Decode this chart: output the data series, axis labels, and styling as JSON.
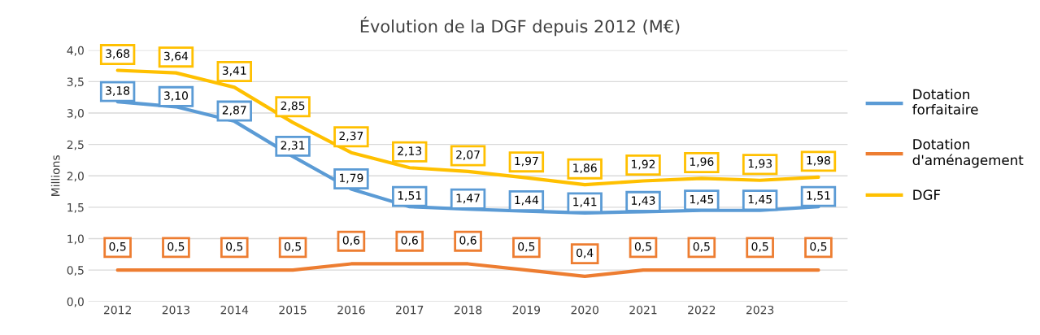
{
  "chart_data": {
    "type": "line",
    "title": "Évolution de la DGF depuis 2012 (M€)",
    "ylabel": "Millions",
    "categories": [
      "2012",
      "2013",
      "2014",
      "2015",
      "2016",
      "2017",
      "2018",
      "2019",
      "2020",
      "2021",
      "2022",
      "2023",
      null
    ],
    "series": [
      {
        "name": "Dotation\nforfaitaire",
        "color": "#5b9bd5",
        "values": [
          3.18,
          3.1,
          2.87,
          2.31,
          1.79,
          1.51,
          1.47,
          1.44,
          1.41,
          1.43,
          1.45,
          1.45,
          1.51
        ],
        "value_labels": [
          "3,18",
          "3,10",
          "2,87",
          "2,31",
          "1,79",
          "1,51",
          "1,47",
          "1,44",
          "1,41",
          "1,43",
          "1,45",
          "1,45",
          "1,51"
        ]
      },
      {
        "name": "Dotation\nd'aménagement",
        "color": "#ed7d31",
        "values": [
          0.5,
          0.5,
          0.5,
          0.5,
          0.6,
          0.6,
          0.6,
          0.5,
          0.4,
          0.5,
          0.5,
          0.5,
          0.5
        ],
        "value_labels": [
          "0,5",
          "0,5",
          "0,5",
          "0,5",
          "0,6",
          "0,6",
          "0,6",
          "0,5",
          "0,4",
          "0,5",
          "0,5",
          "0,5",
          "0,5"
        ]
      },
      {
        "name": "DGF",
        "color": "#ffc000",
        "values": [
          3.68,
          3.64,
          3.41,
          2.85,
          2.37,
          2.13,
          2.07,
          1.97,
          1.86,
          1.92,
          1.96,
          1.93,
          1.98
        ],
        "value_labels": [
          "3,68",
          "3,64",
          "3,41",
          "2,85",
          "2,37",
          "2,13",
          "2,07",
          "1,97",
          "1,86",
          "1,92",
          "1,96",
          "1,93",
          "1,98"
        ]
      }
    ],
    "ylim": [
      0,
      4.0
    ],
    "yticks": [
      {
        "value": 0,
        "label": "0,0"
      },
      {
        "value": 0.5,
        "label": "0,5"
      },
      {
        "value": 1.0,
        "label": "1,0"
      },
      {
        "value": 1.5,
        "label": "1,5"
      },
      {
        "value": 2.0,
        "label": "2,0"
      },
      {
        "value": 2.5,
        "label": "2,5"
      },
      {
        "value": 3.0,
        "label": "3,0"
      },
      {
        "value": 3.5,
        "label": "3,5"
      },
      {
        "value": 4.0,
        "label": "4,0"
      }
    ],
    "grid": "y",
    "legend": "right",
    "marker": "none",
    "line_style": "solid"
  }
}
